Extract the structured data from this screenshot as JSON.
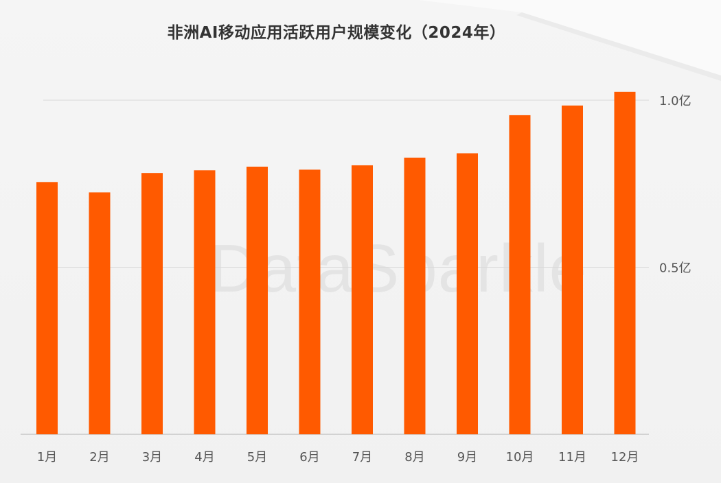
{
  "chart_data": {
    "type": "bar",
    "title": "非洲AI移动应用活跃用户规模变化（2024年）",
    "xlabel": "",
    "ylabel": "",
    "categories": [
      "1月",
      "2月",
      "3月",
      "4月",
      "5月",
      "6月",
      "7月",
      "8月",
      "9月",
      "10月",
      "11月",
      "12月"
    ],
    "values": [
      0.755,
      0.724,
      0.782,
      0.79,
      0.801,
      0.792,
      0.805,
      0.828,
      0.841,
      0.955,
      0.984,
      1.025
    ],
    "unit": "亿",
    "ylim": [
      0,
      1.0
    ],
    "yticks": [
      {
        "value": 0.5,
        "label": "0.5亿"
      },
      {
        "value": 1.0,
        "label": "1.0亿"
      }
    ],
    "y_axis_side": "right",
    "grid": true,
    "legend": "none",
    "bar_color": "#ff5a00",
    "grid_color": "#d9d9d9",
    "axis_color": "#c8c8c8",
    "label_color": "#555555"
  },
  "watermark": "DataSparkle"
}
